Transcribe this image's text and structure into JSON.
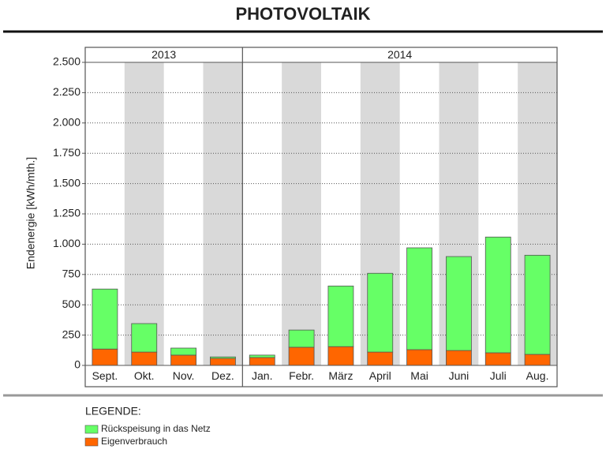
{
  "chart_data": {
    "type": "stacked-bar",
    "title": "PHOTOVOLTAIK",
    "y_label": "Endenergie [kWh/mth.]",
    "groups": [
      {
        "label": "2013",
        "span": 4
      },
      {
        "label": "2014",
        "span": 8
      }
    ],
    "categories": [
      "Sept.",
      "Okt.",
      "Nov.",
      "Dez.",
      "Jan.",
      "Febr.",
      "März",
      "April",
      "Mai",
      "Juni",
      "Juli",
      "Aug."
    ],
    "series": [
      {
        "name": "Rückspeisung in das Netz",
        "color": "#66ff66",
        "values": [
          495,
          235,
          58,
          12,
          20,
          142,
          500,
          650,
          840,
          775,
          955,
          818
        ]
      },
      {
        "name": "Eigenverbrauch",
        "color": "#ff6600",
        "values": [
          135,
          110,
          85,
          58,
          65,
          150,
          155,
          110,
          130,
          123,
          104,
          91
        ]
      }
    ],
    "ylim": [
      0,
      2500
    ],
    "yticks": [
      0,
      250,
      500,
      750,
      {
        "value": 1000,
        "label": "1.000"
      },
      {
        "value": 1250,
        "label": "1.250"
      },
      {
        "value": 1500,
        "label": "1.500"
      },
      {
        "value": 1750,
        "label": "1.750"
      },
      {
        "value": 2000,
        "label": "2.000"
      },
      {
        "value": 2250,
        "label": "2.250"
      },
      {
        "value": 2500,
        "label": "2.500"
      }
    ],
    "grid": true,
    "legend_title": "LEGENDE:"
  }
}
